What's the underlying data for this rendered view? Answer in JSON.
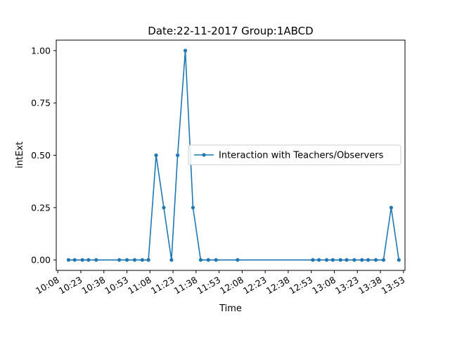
{
  "chart_data": {
    "type": "line",
    "title": "Date:22-11-2017  Group:1ABCD",
    "xlabel": "Time",
    "ylabel": "intExt",
    "x_ticks": [
      "10:08",
      "10:23",
      "10:38",
      "10:53",
      "11:08",
      "11:23",
      "11:38",
      "11:53",
      "12:08",
      "12:23",
      "12:38",
      "12:53",
      "13:08",
      "13:23",
      "13:38",
      "13:53"
    ],
    "y_ticks": [
      "0.00",
      "0.25",
      "0.50",
      "0.75",
      "1.00"
    ],
    "xlim": [
      "10:07",
      "13:54"
    ],
    "ylim": [
      -0.05,
      1.05
    ],
    "grid": false,
    "legend_position": "center-right",
    "series": [
      {
        "name": "Interaction with Teachers/Observers",
        "color": "#1f77b4",
        "marker": "circle",
        "x": [
          "10:15",
          "10:19",
          "10:24",
          "10:28",
          "10:33",
          "10:48",
          "10:53",
          "10:58",
          "11:03",
          "11:07",
          "11:12",
          "11:17",
          "11:22",
          "11:26",
          "11:31",
          "11:36",
          "11:41",
          "11:46",
          "11:51",
          "12:05",
          "12:54",
          "12:58",
          "13:03",
          "13:07",
          "13:12",
          "13:16",
          "13:21",
          "13:26",
          "13:30",
          "13:35",
          "13:40",
          "13:45",
          "13:50"
        ],
        "y": [
          0,
          0,
          0,
          0,
          0,
          0,
          0,
          0,
          0,
          0,
          0.5,
          0.25,
          0,
          0.5,
          1.0,
          0.25,
          0,
          0,
          0,
          0,
          0,
          0,
          0,
          0,
          0,
          0,
          0,
          0,
          0,
          0,
          0,
          0.25,
          0
        ]
      }
    ]
  }
}
